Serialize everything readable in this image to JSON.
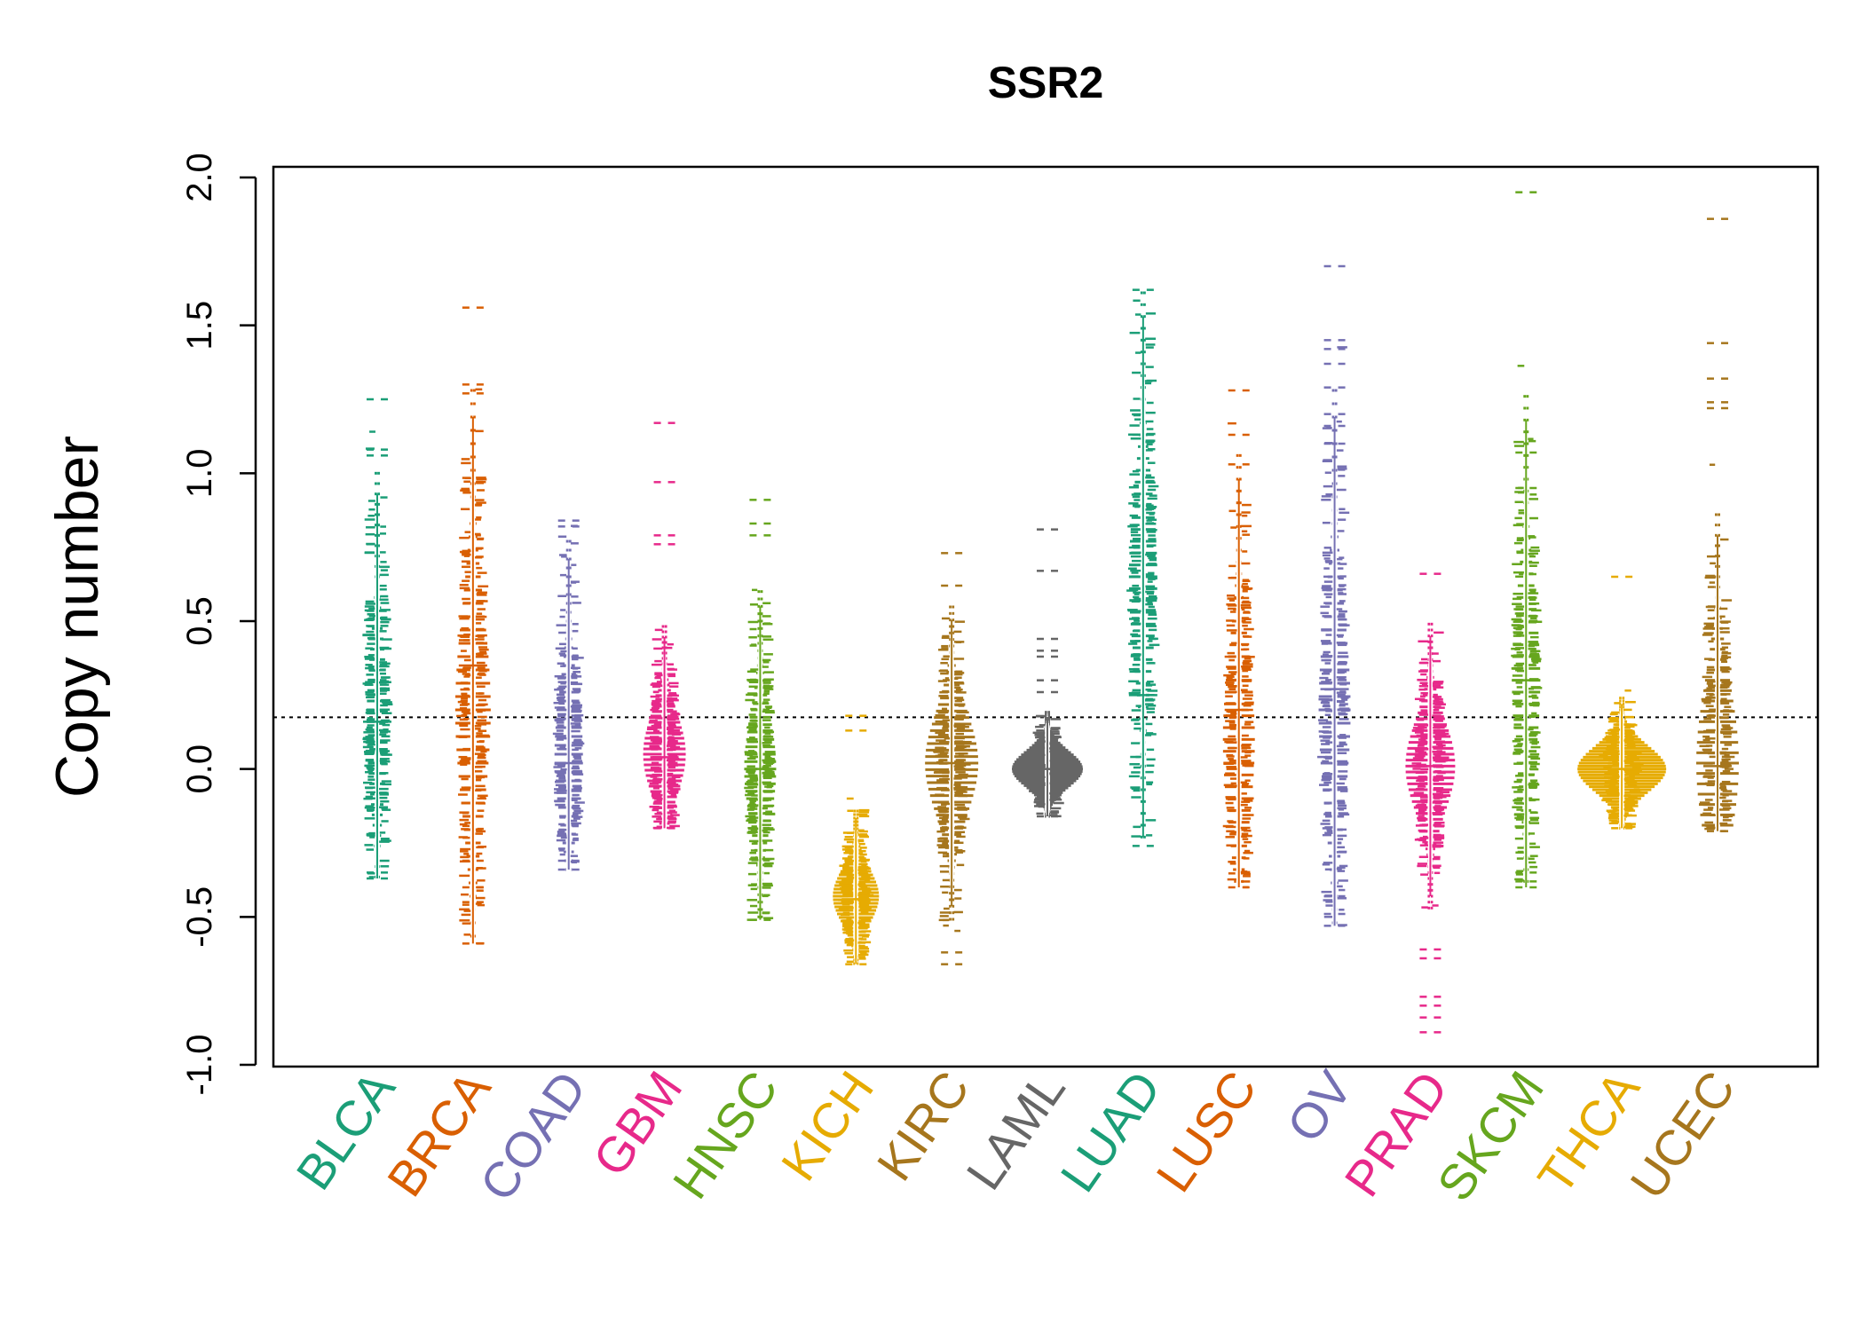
{
  "chart_data": {
    "type": "beeswarm",
    "title": "SSR2",
    "xlabel": "",
    "ylabel": "Copy number",
    "ylim": [
      -1.0,
      2.0
    ],
    "yticks": [
      "-1.0",
      "-0.5",
      "0.0",
      "0.5",
      "1.0",
      "1.5",
      "2.0"
    ],
    "reference_line": 0.175,
    "grid": false,
    "categories": [
      {
        "name": "BLCA",
        "color": "#1B9E77",
        "center": 0.16,
        "min": -0.37,
        "max": 1.25,
        "mode": 0.16,
        "spread": 0.35,
        "width": 12,
        "outliers": [
          1.25,
          1.08,
          1.06,
          -0.35,
          -0.37
        ]
      },
      {
        "name": "BRCA",
        "color": "#D95F02",
        "center": 0.35,
        "min": -0.59,
        "max": 1.56,
        "mode": 0.2,
        "spread": 0.45,
        "width": 20,
        "outliers": [
          1.56,
          1.3,
          1.27,
          -0.31,
          -0.4,
          -0.45,
          -0.59
        ]
      },
      {
        "name": "COAD",
        "color": "#7570B3",
        "center": 0.02,
        "min": -0.34,
        "max": 0.84,
        "mode": 0.05,
        "spread": 0.3,
        "width": 16,
        "outliers": [
          0.84,
          0.82,
          -0.31,
          -0.34
        ]
      },
      {
        "name": "GBM",
        "color": "#E7298A",
        "center": 0.04,
        "min": -0.2,
        "max": 1.17,
        "mode": 0.05,
        "spread": 0.18,
        "width": 24,
        "outliers": [
          1.17,
          0.97,
          0.79,
          0.76,
          -0.2
        ]
      },
      {
        "name": "HNSC",
        "color": "#66A61E",
        "center": 0.0,
        "min": -0.51,
        "max": 0.91,
        "mode": 0.0,
        "spread": 0.25,
        "width": 18,
        "outliers": [
          0.91,
          0.83,
          0.79,
          -0.51
        ]
      },
      {
        "name": "KICH",
        "color": "#E6AB02",
        "center": -0.44,
        "min": -0.66,
        "max": 0.18,
        "mode": -0.43,
        "spread": 0.12,
        "width": 26,
        "outliers": [
          0.18,
          0.13,
          -0.66
        ]
      },
      {
        "name": "KIRC",
        "color": "#A6761D",
        "center": 0.02,
        "min": -0.66,
        "max": 0.73,
        "mode": 0.02,
        "spread": 0.22,
        "width": 30,
        "outliers": [
          0.73,
          0.62,
          -0.62,
          -0.66
        ]
      },
      {
        "name": "LAML",
        "color": "#666666",
        "center": 0.0,
        "min": -0.16,
        "max": 0.81,
        "mode": 0.0,
        "spread": 0.08,
        "width": 40,
        "outliers": [
          0.81,
          0.67,
          0.44,
          0.4,
          0.38,
          0.3,
          0.26,
          -0.16
        ]
      },
      {
        "name": "LUAD",
        "color": "#1B9E77",
        "center": 0.25,
        "min": -0.26,
        "max": 1.62,
        "mode": 0.65,
        "spread": 0.4,
        "width": 16,
        "outliers": [
          1.62,
          1.13,
          -0.26
        ]
      },
      {
        "name": "LUSC",
        "color": "#D95F02",
        "center": 0.2,
        "min": -0.4,
        "max": 1.28,
        "mode": 0.1,
        "spread": 0.4,
        "width": 18,
        "outliers": [
          1.28,
          1.13,
          1.03,
          -0.4
        ]
      },
      {
        "name": "OV",
        "color": "#7570B3",
        "center": 0.27,
        "min": -0.53,
        "max": 1.7,
        "mode": 0.2,
        "spread": 0.45,
        "width": 18,
        "outliers": [
          1.7,
          1.45,
          1.42,
          1.37,
          1.29,
          1.2,
          1.16,
          1.1,
          -0.43,
          -0.49,
          -0.53
        ]
      },
      {
        "name": "PRAD",
        "color": "#E7298A",
        "center": 0.01,
        "min": -0.89,
        "max": 0.66,
        "mode": 0.01,
        "spread": 0.2,
        "width": 28,
        "outliers": [
          0.66,
          -0.61,
          -0.64,
          -0.77,
          -0.8,
          -0.84,
          -0.89
        ]
      },
      {
        "name": "SKCM",
        "color": "#66A61E",
        "center": 0.3,
        "min": -0.4,
        "max": 1.95,
        "mode": 0.3,
        "spread": 0.4,
        "width": 16,
        "outliers": [
          1.95,
          1.07,
          0.95,
          -0.35,
          -0.38,
          -0.4
        ]
      },
      {
        "name": "THCA",
        "color": "#E6AB02",
        "center": 0.0,
        "min": -0.2,
        "max": 0.65,
        "mode": 0.0,
        "spread": 0.1,
        "width": 50,
        "outliers": [
          0.65,
          -0.2
        ]
      },
      {
        "name": "UCEC",
        "color": "#A6761D",
        "center": 0.01,
        "min": -0.21,
        "max": 1.86,
        "mode": 0.02,
        "spread": 0.35,
        "width": 24,
        "outliers": [
          1.86,
          1.44,
          1.32,
          1.24,
          1.22,
          -0.21
        ]
      }
    ]
  }
}
